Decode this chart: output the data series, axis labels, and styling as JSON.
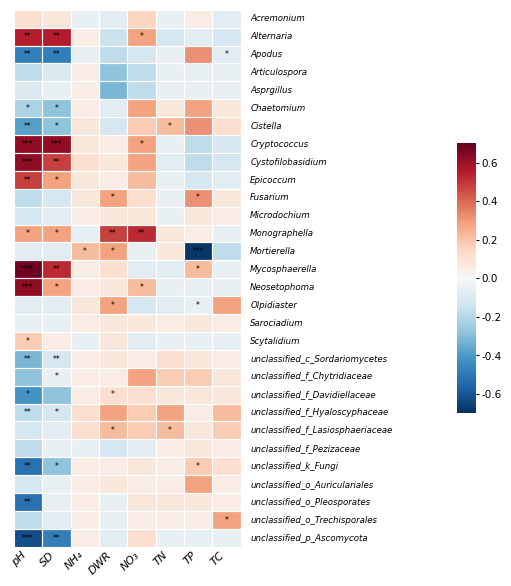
{
  "genera": [
    "Acremonium",
    "Alternaria",
    "Apodus",
    "Articulospora",
    "Asprgillus",
    "Chaetomium",
    "Cistella",
    "Cryptococcus",
    "Cystofilobasidium",
    "Epicoccum",
    "Fusarium",
    "Microdochium",
    "Monographella",
    "Mortierella",
    "Mycosphaerella",
    "Neosetophoma",
    "Olpidiaster",
    "Sarociadium",
    "Scytalidium",
    "unclassified_c_Sordariomycetes",
    "unclassified_f_Chytridiaceae",
    "unclassified_f_Davidiellaceae",
    "unclassified_f_Hyaloscyphaceae",
    "unclassified_f_Lasiosphaeriaceae",
    "unclassified_f_Pezizaceae",
    "unclassified_k_Fungi",
    "unclassified_o_Auriculariales",
    "unclassified_o_Pleosporates",
    "unclassified_o_Trechisporales",
    "unclassified_p_Ascomycota"
  ],
  "soil_props": [
    "pH",
    "SD",
    "NH₄",
    "DWR",
    "NO₃",
    "TN",
    "TP",
    "TC"
  ],
  "data": [
    [
      0.12,
      0.08,
      -0.05,
      -0.08,
      0.15,
      -0.05,
      0.05,
      -0.08
    ],
    [
      0.55,
      0.55,
      0.05,
      -0.15,
      0.28,
      -0.12,
      -0.08,
      -0.12
    ],
    [
      -0.48,
      -0.48,
      -0.05,
      -0.18,
      -0.12,
      -0.05,
      0.32,
      -0.08
    ],
    [
      -0.18,
      -0.1,
      0.05,
      -0.28,
      -0.18,
      -0.05,
      -0.05,
      -0.05
    ],
    [
      -0.1,
      -0.05,
      0.05,
      -0.32,
      -0.18,
      -0.05,
      -0.05,
      -0.05
    ],
    [
      -0.22,
      -0.28,
      0.05,
      -0.08,
      0.28,
      0.08,
      0.28,
      0.08
    ],
    [
      -0.38,
      -0.28,
      0.08,
      -0.12,
      0.18,
      0.22,
      0.32,
      0.12
    ],
    [
      0.62,
      0.62,
      0.08,
      0.05,
      0.28,
      -0.05,
      -0.18,
      -0.12
    ],
    [
      0.62,
      0.48,
      0.12,
      0.08,
      0.28,
      -0.08,
      -0.18,
      -0.12
    ],
    [
      0.48,
      0.28,
      0.08,
      0.05,
      0.22,
      -0.05,
      -0.12,
      -0.08
    ],
    [
      -0.18,
      -0.12,
      0.08,
      0.28,
      0.12,
      -0.05,
      0.32,
      0.08
    ],
    [
      -0.12,
      -0.08,
      0.05,
      0.08,
      0.08,
      -0.05,
      0.08,
      0.05
    ],
    [
      0.28,
      0.28,
      -0.05,
      0.48,
      0.52,
      0.08,
      0.05,
      -0.05
    ],
    [
      -0.08,
      -0.08,
      0.22,
      0.28,
      -0.05,
      0.08,
      -0.68,
      -0.18
    ],
    [
      0.68,
      0.52,
      0.05,
      0.12,
      -0.08,
      -0.08,
      0.22,
      -0.05
    ],
    [
      0.62,
      0.28,
      0.05,
      0.08,
      0.22,
      -0.05,
      -0.05,
      -0.05
    ],
    [
      -0.08,
      -0.08,
      0.08,
      0.28,
      -0.12,
      -0.08,
      -0.05,
      0.28
    ],
    [
      -0.05,
      -0.05,
      0.05,
      0.08,
      0.08,
      0.05,
      0.08,
      0.05
    ],
    [
      0.18,
      0.05,
      -0.05,
      0.08,
      -0.08,
      -0.05,
      -0.05,
      -0.05
    ],
    [
      -0.32,
      -0.12,
      0.05,
      0.08,
      0.05,
      0.12,
      0.08,
      0.05
    ],
    [
      -0.28,
      -0.05,
      0.05,
      0.05,
      0.28,
      0.18,
      0.18,
      0.08
    ],
    [
      -0.42,
      -0.28,
      0.05,
      0.12,
      0.12,
      0.08,
      0.08,
      0.08
    ],
    [
      -0.18,
      -0.12,
      0.12,
      0.28,
      0.18,
      0.28,
      0.05,
      0.22
    ],
    [
      -0.12,
      -0.08,
      0.12,
      0.22,
      0.18,
      0.22,
      0.08,
      0.18
    ],
    [
      -0.18,
      -0.05,
      -0.05,
      -0.12,
      -0.08,
      0.05,
      0.08,
      0.05
    ],
    [
      -0.52,
      -0.28,
      0.05,
      0.05,
      0.08,
      0.05,
      0.18,
      0.12
    ],
    [
      -0.12,
      -0.05,
      0.05,
      0.08,
      0.05,
      0.05,
      0.28,
      0.05
    ],
    [
      -0.52,
      -0.05,
      0.05,
      -0.05,
      0.08,
      0.08,
      0.08,
      0.05
    ],
    [
      -0.18,
      -0.08,
      0.05,
      -0.05,
      0.05,
      0.05,
      0.05,
      0.28
    ],
    [
      -0.62,
      -0.48,
      0.05,
      -0.08,
      0.12,
      -0.05,
      -0.05,
      -0.05
    ]
  ],
  "annotations": [
    [
      "",
      "",
      "",
      "",
      "",
      "",
      "",
      ""
    ],
    [
      "**",
      "**",
      "",
      "",
      "*",
      "",
      "",
      ""
    ],
    [
      "**",
      "**",
      "",
      "",
      "",
      "",
      "",
      "*"
    ],
    [
      "",
      "",
      "",
      "",
      "",
      "",
      "",
      ""
    ],
    [
      "",
      "",
      "",
      "",
      "",
      "",
      "",
      ""
    ],
    [
      "*",
      "*",
      "",
      "",
      "",
      "",
      "",
      ""
    ],
    [
      "**",
      "*",
      "",
      "",
      "",
      "*",
      "",
      ""
    ],
    [
      "***",
      "***",
      "",
      "",
      "*",
      "",
      "",
      ""
    ],
    [
      "***",
      "**",
      "",
      "",
      "",
      "",
      "",
      ""
    ],
    [
      "**",
      "*",
      "",
      "",
      "",
      "",
      "",
      ""
    ],
    [
      "",
      "",
      "",
      "*",
      "",
      "",
      "*",
      ""
    ],
    [
      "",
      "",
      "",
      "",
      "",
      "",
      "",
      ""
    ],
    [
      "*",
      "*",
      "",
      "**",
      "**",
      "",
      "",
      ""
    ],
    [
      "",
      "",
      "*",
      "*",
      "",
      "",
      "***",
      ""
    ],
    [
      "***",
      "**",
      "",
      "",
      "",
      "",
      "*",
      ""
    ],
    [
      "***",
      "*",
      "",
      "",
      "*",
      "",
      "",
      ""
    ],
    [
      "",
      "",
      "",
      "*",
      "",
      "",
      "*",
      ""
    ],
    [
      "",
      "",
      "",
      "",
      "",
      "",
      "",
      ""
    ],
    [
      "*",
      "",
      "",
      "",
      "",
      "",
      "",
      ""
    ],
    [
      "**",
      "**",
      "",
      "",
      "",
      "",
      "",
      ""
    ],
    [
      "",
      "*",
      "",
      "",
      "",
      "",
      "",
      ""
    ],
    [
      "*",
      "",
      "",
      "*",
      "",
      "",
      "",
      ""
    ],
    [
      "**",
      "*",
      "",
      "",
      "",
      "",
      "",
      ""
    ],
    [
      "",
      "",
      "",
      "*",
      "",
      "*",
      "",
      ""
    ],
    [
      "",
      "",
      "",
      "",
      "",
      "",
      "",
      ""
    ],
    [
      "**",
      "*",
      "",
      "",
      "",
      "",
      "*",
      ""
    ],
    [
      "",
      "",
      "",
      "",
      "",
      "",
      "",
      ""
    ],
    [
      "**",
      "",
      "",
      "",
      "",
      "",
      "",
      ""
    ],
    [
      "",
      "",
      "",
      "",
      "",
      "",
      "",
      "*"
    ],
    [
      "***",
      "**",
      "",
      "",
      "",
      "",
      "",
      ""
    ]
  ],
  "vmin": -0.7,
  "vmax": 0.7,
  "cmap": "RdBu_r",
  "colorbar_ticks": [
    0.6,
    0.4,
    0.2,
    0.0,
    -0.2,
    -0.4,
    -0.6
  ],
  "colorbar_labels": [
    "0.6",
    "0.4",
    "0.2",
    "0.0",
    "-0.2",
    "-0.4",
    "-0.6"
  ]
}
